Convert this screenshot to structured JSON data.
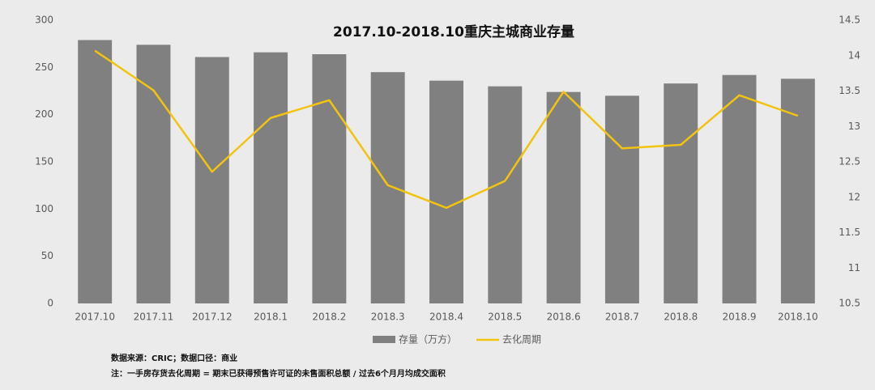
{
  "chart_data": {
    "type": "combo",
    "title": "2017.10-2018.10重庆主城商业存量",
    "categories": [
      "2017.10",
      "2017.11",
      "2017.12",
      "2018.1",
      "2018.2",
      "2018.3",
      "2018.4",
      "2018.5",
      "2018.6",
      "2018.7",
      "2018.8",
      "2018.9",
      "2018.10"
    ],
    "series": [
      {
        "name": "存量（万方）",
        "type": "bar",
        "color": "#808080",
        "values": [
          279,
          274,
          261,
          266,
          264,
          245,
          236,
          230,
          224,
          220,
          233,
          242,
          238
        ]
      },
      {
        "name": "去化周期",
        "type": "line",
        "axis": "y2",
        "color": "#f2c30f",
        "values": [
          14.07,
          13.51,
          12.36,
          13.12,
          13.37,
          12.17,
          11.85,
          12.23,
          13.49,
          12.69,
          12.74,
          13.44,
          13.15
        ]
      }
    ],
    "ylim": [
      0,
      300
    ],
    "yticks": [
      0,
      50,
      100,
      150,
      200,
      250,
      300
    ],
    "y2lim": [
      10.5,
      14.5
    ],
    "y2ticks": [
      10.5,
      11,
      11.5,
      12,
      12.5,
      13,
      13.5,
      14,
      14.5
    ],
    "grid": false,
    "legend": "bottom",
    "notes": [
      "数据来源：CRIC；数据口径：商业",
      "注：一手房存货去化周期 = 期末已获得预售许可证的未售面积总额 / 过去6个月月均成交面积"
    ]
  }
}
